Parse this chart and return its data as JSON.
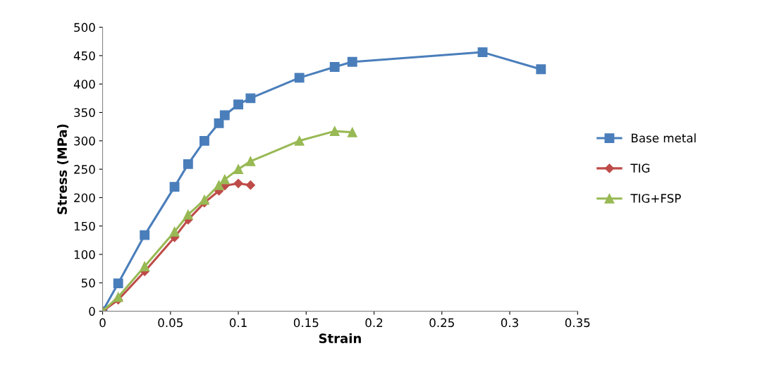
{
  "chart_data": {
    "type": "line",
    "xlabel": "Strain",
    "ylabel": "Stress (MPa)",
    "xlim": [
      0,
      0.35
    ],
    "xticks": [
      0,
      0.05,
      0.1,
      0.15,
      0.2,
      0.25,
      0.3,
      0.35
    ],
    "ylim": [
      0,
      500
    ],
    "yticks": [
      0,
      50,
      100,
      150,
      200,
      250,
      300,
      350,
      400,
      450,
      500
    ],
    "grid": false,
    "legend": "right",
    "series": [
      {
        "name": "Base metal",
        "color": "#4a7ebb",
        "marker": "square",
        "x": [
          0,
          0.0115,
          0.031,
          0.053,
          0.063,
          0.075,
          0.0857,
          0.09,
          0.1,
          0.109,
          0.145,
          0.171,
          0.184,
          0.28,
          0.323
        ],
        "values": [
          0,
          49,
          134,
          219,
          259,
          300,
          331,
          345,
          364,
          375,
          411,
          430,
          439,
          456,
          426
        ]
      },
      {
        "name": "TIG",
        "color": "#be4b48",
        "marker": "diamond",
        "x": [
          0,
          0.0115,
          0.031,
          0.053,
          0.063,
          0.075,
          0.0857,
          0.09,
          0.1,
          0.109
        ],
        "values": [
          0,
          20,
          70,
          130,
          161,
          191,
          212,
          221,
          225,
          222
        ]
      },
      {
        "name": "TIG+FSP",
        "color": "#98b954",
        "marker": "triangle",
        "x": [
          0,
          0.0115,
          0.031,
          0.053,
          0.063,
          0.075,
          0.0857,
          0.09,
          0.1,
          0.109,
          0.145,
          0.171,
          0.184
        ],
        "values": [
          0,
          25,
          79,
          140,
          170,
          196,
          222,
          232,
          250,
          264,
          300,
          317,
          315
        ]
      }
    ]
  }
}
